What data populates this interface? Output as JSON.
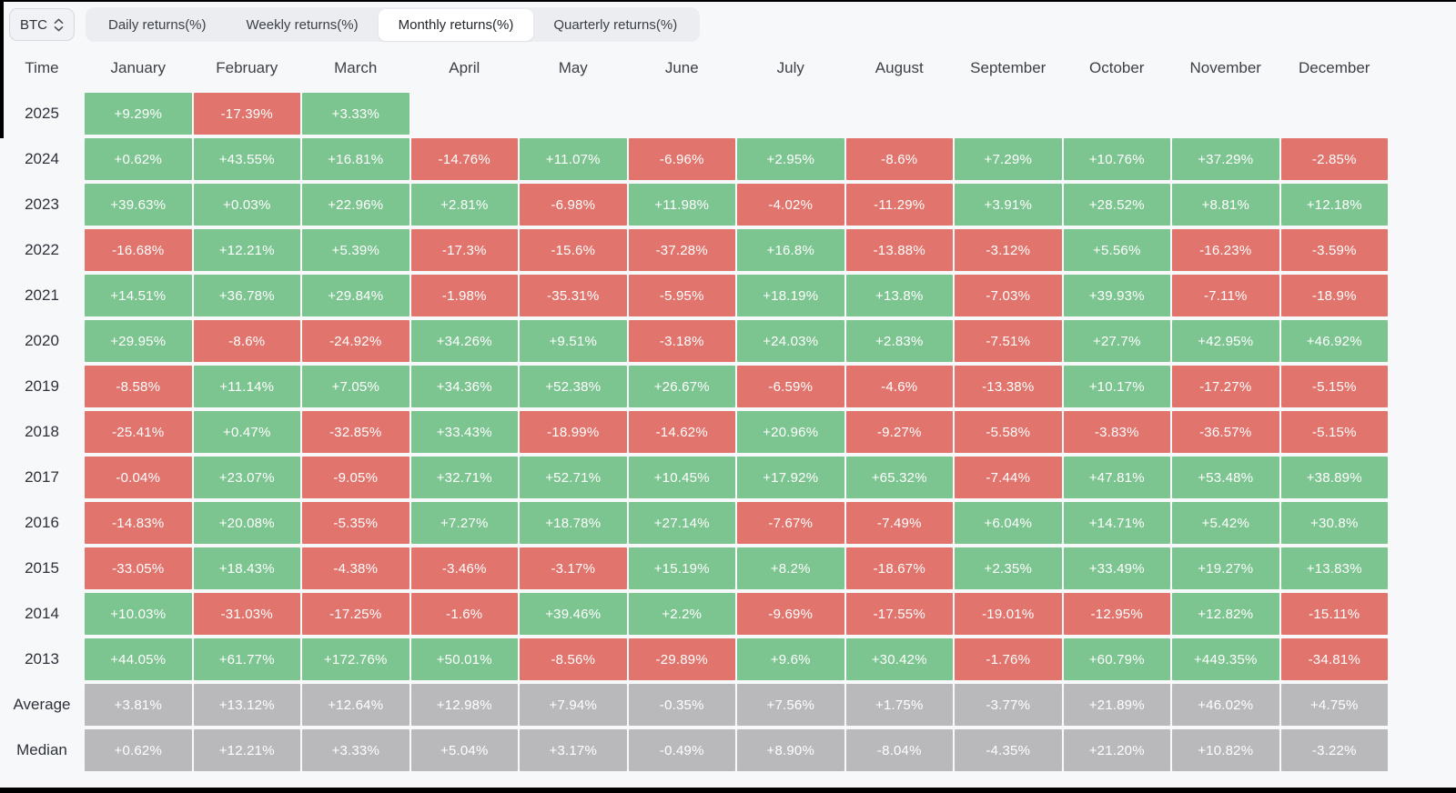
{
  "selector": {
    "value": "BTC"
  },
  "tabs": [
    {
      "label": "Daily returns(%)",
      "active": false
    },
    {
      "label": "Weekly returns(%)",
      "active": false
    },
    {
      "label": "Monthly returns(%)",
      "active": true
    },
    {
      "label": "Quarterly returns(%)",
      "active": false
    }
  ],
  "table": {
    "corner_label": "Time",
    "months": [
      "January",
      "February",
      "March",
      "April",
      "May",
      "June",
      "July",
      "August",
      "September",
      "October",
      "November",
      "December"
    ],
    "rows": [
      {
        "label": "2025",
        "type": "year",
        "values": [
          "+9.29%",
          "-17.39%",
          "+3.33%",
          "",
          "",
          "",
          "",
          "",
          "",
          "",
          "",
          ""
        ]
      },
      {
        "label": "2024",
        "type": "year",
        "values": [
          "+0.62%",
          "+43.55%",
          "+16.81%",
          "-14.76%",
          "+11.07%",
          "-6.96%",
          "+2.95%",
          "-8.6%",
          "+7.29%",
          "+10.76%",
          "+37.29%",
          "-2.85%"
        ]
      },
      {
        "label": "2023",
        "type": "year",
        "values": [
          "+39.63%",
          "+0.03%",
          "+22.96%",
          "+2.81%",
          "-6.98%",
          "+11.98%",
          "-4.02%",
          "-11.29%",
          "+3.91%",
          "+28.52%",
          "+8.81%",
          "+12.18%"
        ]
      },
      {
        "label": "2022",
        "type": "year",
        "values": [
          "-16.68%",
          "+12.21%",
          "+5.39%",
          "-17.3%",
          "-15.6%",
          "-37.28%",
          "+16.8%",
          "-13.88%",
          "-3.12%",
          "+5.56%",
          "-16.23%",
          "-3.59%"
        ]
      },
      {
        "label": "2021",
        "type": "year",
        "values": [
          "+14.51%",
          "+36.78%",
          "+29.84%",
          "-1.98%",
          "-35.31%",
          "-5.95%",
          "+18.19%",
          "+13.8%",
          "-7.03%",
          "+39.93%",
          "-7.11%",
          "-18.9%"
        ]
      },
      {
        "label": "2020",
        "type": "year",
        "values": [
          "+29.95%",
          "-8.6%",
          "-24.92%",
          "+34.26%",
          "+9.51%",
          "-3.18%",
          "+24.03%",
          "+2.83%",
          "-7.51%",
          "+27.7%",
          "+42.95%",
          "+46.92%"
        ]
      },
      {
        "label": "2019",
        "type": "year",
        "values": [
          "-8.58%",
          "+11.14%",
          "+7.05%",
          "+34.36%",
          "+52.38%",
          "+26.67%",
          "-6.59%",
          "-4.6%",
          "-13.38%",
          "+10.17%",
          "-17.27%",
          "-5.15%"
        ]
      },
      {
        "label": "2018",
        "type": "year",
        "values": [
          "-25.41%",
          "+0.47%",
          "-32.85%",
          "+33.43%",
          "-18.99%",
          "-14.62%",
          "+20.96%",
          "-9.27%",
          "-5.58%",
          "-3.83%",
          "-36.57%",
          "-5.15%"
        ]
      },
      {
        "label": "2017",
        "type": "year",
        "values": [
          "-0.04%",
          "+23.07%",
          "-9.05%",
          "+32.71%",
          "+52.71%",
          "+10.45%",
          "+17.92%",
          "+65.32%",
          "-7.44%",
          "+47.81%",
          "+53.48%",
          "+38.89%"
        ]
      },
      {
        "label": "2016",
        "type": "year",
        "values": [
          "-14.83%",
          "+20.08%",
          "-5.35%",
          "+7.27%",
          "+18.78%",
          "+27.14%",
          "-7.67%",
          "-7.49%",
          "+6.04%",
          "+14.71%",
          "+5.42%",
          "+30.8%"
        ]
      },
      {
        "label": "2015",
        "type": "year",
        "values": [
          "-33.05%",
          "+18.43%",
          "-4.38%",
          "-3.46%",
          "-3.17%",
          "+15.19%",
          "+8.2%",
          "-18.67%",
          "+2.35%",
          "+33.49%",
          "+19.27%",
          "+13.83%"
        ]
      },
      {
        "label": "2014",
        "type": "year",
        "values": [
          "+10.03%",
          "-31.03%",
          "-17.25%",
          "-1.6%",
          "+39.46%",
          "+2.2%",
          "-9.69%",
          "-17.55%",
          "-19.01%",
          "-12.95%",
          "+12.82%",
          "-15.11%"
        ]
      },
      {
        "label": "2013",
        "type": "year",
        "values": [
          "+44.05%",
          "+61.77%",
          "+172.76%",
          "+50.01%",
          "-8.56%",
          "-29.89%",
          "+9.6%",
          "+30.42%",
          "-1.76%",
          "+60.79%",
          "+449.35%",
          "-34.81%"
        ]
      },
      {
        "label": "Average",
        "type": "summary",
        "values": [
          "+3.81%",
          "+13.12%",
          "+12.64%",
          "+12.98%",
          "+7.94%",
          "-0.35%",
          "+7.56%",
          "+1.75%",
          "-3.77%",
          "+21.89%",
          "+46.02%",
          "+4.75%"
        ]
      },
      {
        "label": "Median",
        "type": "summary",
        "values": [
          "+0.62%",
          "+12.21%",
          "+3.33%",
          "+5.04%",
          "+3.17%",
          "-0.49%",
          "+8.90%",
          "-8.04%",
          "-4.35%",
          "+21.20%",
          "+10.82%",
          "-3.22%"
        ]
      }
    ]
  },
  "colors": {
    "positive": "#7dc590",
    "negative": "#e1746c",
    "summary": "#b9b9bb",
    "page_bg": "#f7f8fa",
    "tab_bar_bg": "#ebedf1",
    "active_tab_bg": "#ffffff",
    "cell_text": "#ffffff"
  }
}
